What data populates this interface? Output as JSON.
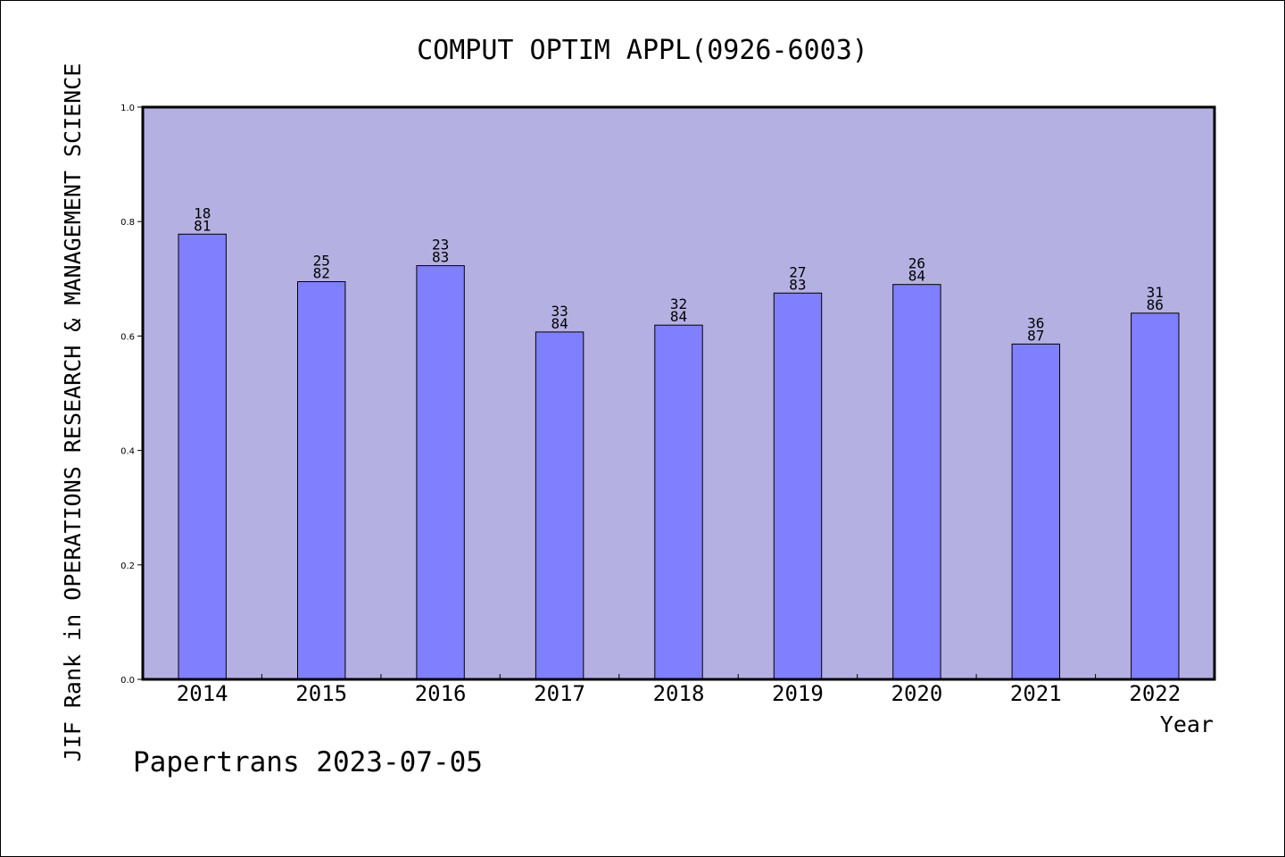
{
  "chart_data": {
    "type": "bar",
    "title": "COMPUT OPTIM APPL(0926-6003)",
    "ylabel": "JIF Rank in OPERATIONS RESEARCH & MANAGEMENT SCIENCE",
    "xlabel": "Year",
    "categories": [
      "2014",
      "2015",
      "2016",
      "2017",
      "2018",
      "2019",
      "2020",
      "2021",
      "2022"
    ],
    "values": [
      0.778,
      0.695,
      0.723,
      0.607,
      0.619,
      0.675,
      0.69,
      0.586,
      0.64
    ],
    "labels": [
      [
        "18",
        "81"
      ],
      [
        "25",
        "82"
      ],
      [
        "23",
        "83"
      ],
      [
        "33",
        "84"
      ],
      [
        "32",
        "84"
      ],
      [
        "27",
        "83"
      ],
      [
        "26",
        "84"
      ],
      [
        "36",
        "87"
      ],
      [
        "31",
        "86"
      ]
    ],
    "ylim": [
      0,
      1.0
    ],
    "yticks": [
      "0.0",
      "0.2",
      "0.4",
      "0.6",
      "0.8",
      "1.0"
    ],
    "grid": false,
    "colors": {
      "plot_background": "#b5b0e2",
      "bar_fill": "#8080ff",
      "bar_stroke": "#000000"
    }
  },
  "footer": {
    "text": "Papertrans 2023-07-05"
  }
}
